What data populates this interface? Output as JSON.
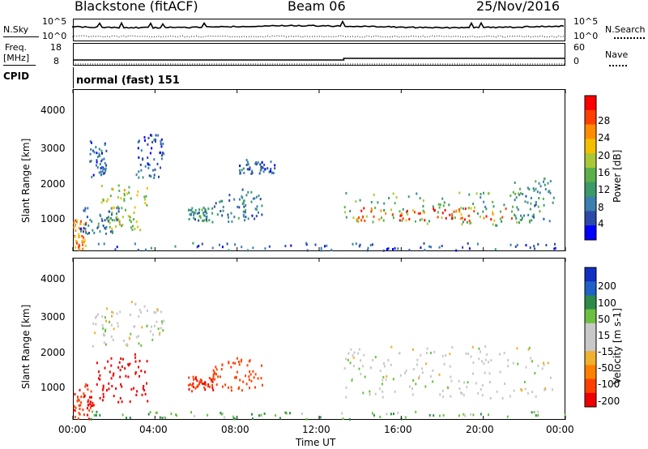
{
  "header": {
    "station": "Blackstone (fitACF)",
    "beam": "Beam 06",
    "date": "25/Nov/2016"
  },
  "noise_panel": {
    "left_label": "N.Sky",
    "left_ticks": [
      "10^5",
      "10^0"
    ],
    "right_label": "N.Search",
    "right_ticks": [
      "10^5",
      "10^0"
    ]
  },
  "freq_panel": {
    "left_label_1": "Freq.",
    "left_label_2": "[MHz]",
    "left_ticks": [
      "18",
      "8"
    ],
    "right_label": "Nave",
    "right_ticks": [
      "60",
      "0"
    ]
  },
  "cpid": {
    "label": "CPID",
    "value": "normal (fast) 151"
  },
  "colors": {
    "power_scale": [
      "#0000ff",
      "#2b4aa8",
      "#3a7fb0",
      "#3a9a6a",
      "#5ab04a",
      "#a8c838",
      "#f2c000",
      "#ff8c00",
      "#ff4000",
      "#ff0000"
    ],
    "velocity_scale": [
      "#1030c0",
      "#2060c8",
      "#2f8a4a",
      "#6cc040",
      "#c8c8c8",
      "#c8c8c8",
      "#f0b030",
      "#ff8000",
      "#ff4000",
      "#ee0000"
    ]
  },
  "chart_data": [
    {
      "type": "heatmap",
      "name": "power",
      "ylabel": "Slant Range [km]",
      "xlabel": "",
      "y_ticks": [
        "1000",
        "2000",
        "3000",
        "4000"
      ],
      "y_range": [
        200,
        4550
      ],
      "x_range_hours": [
        0,
        24
      ],
      "colorbar_label": "Power [dB]",
      "colorbar_ticks": [
        "4",
        "8",
        "12",
        "16",
        "20",
        "24",
        "28"
      ],
      "colorbar_range": [
        0,
        32
      ],
      "features": [
        {
          "t_start": 0.0,
          "t_end": 0.6,
          "range_low": 200,
          "range_high": 1100,
          "level": 24
        },
        {
          "t_start": 0.2,
          "t_end": 2.2,
          "range_low": 700,
          "range_high": 1400,
          "level": 8
        },
        {
          "t_start": 1.2,
          "t_end": 3.6,
          "range_low": 800,
          "range_high": 2000,
          "level": 18
        },
        {
          "t_start": 0.8,
          "t_end": 1.6,
          "range_low": 2200,
          "range_high": 3200,
          "level": 6
        },
        {
          "t_start": 3.0,
          "t_end": 4.4,
          "range_low": 2200,
          "range_high": 3400,
          "level": 5
        },
        {
          "t_start": 5.6,
          "t_end": 6.8,
          "range_low": 1000,
          "range_high": 1400,
          "level": 10
        },
        {
          "t_start": 6.8,
          "t_end": 9.2,
          "range_low": 1000,
          "range_high": 1900,
          "level": 8
        },
        {
          "t_start": 8.0,
          "t_end": 9.8,
          "range_low": 2300,
          "range_high": 2700,
          "level": 6
        },
        {
          "t_start": 0.5,
          "t_end": 24.0,
          "range_low": 200,
          "range_high": 450,
          "level": 6
        },
        {
          "t_start": 13.2,
          "t_end": 21.8,
          "range_low": 900,
          "range_high": 1800,
          "level": 14
        },
        {
          "t_start": 13.6,
          "t_end": 21.6,
          "range_low": 1050,
          "range_high": 1400,
          "level": 26
        },
        {
          "t_start": 21.4,
          "t_end": 23.4,
          "range_low": 1000,
          "range_high": 2200,
          "level": 10
        }
      ]
    },
    {
      "type": "heatmap",
      "name": "velocity",
      "ylabel": "Slant Range [km]",
      "xlabel": "Time UT",
      "y_ticks": [
        "1000",
        "2000",
        "3000",
        "4000"
      ],
      "y_range": [
        200,
        4550
      ],
      "x_range_hours": [
        0,
        24
      ],
      "x_ticks": [
        "00:00",
        "04:00",
        "08:00",
        "12:00",
        "16:00",
        "20:00",
        "00:00"
      ],
      "colorbar_label": "Velocity [m s-1]",
      "colorbar_ticks": [
        "200",
        "100",
        "50",
        "15",
        "-15",
        "-50",
        "-100",
        "-200"
      ],
      "features": [
        {
          "t_start": 0.0,
          "t_end": 1.0,
          "range_low": 200,
          "range_high": 1200,
          "velocity": -150
        },
        {
          "t_start": 1.0,
          "t_end": 3.6,
          "range_low": 700,
          "range_high": 2000,
          "velocity": -200
        },
        {
          "t_start": 0.8,
          "t_end": 4.4,
          "range_low": 2200,
          "range_high": 3400,
          "velocity": 0
        },
        {
          "t_start": 5.6,
          "t_end": 6.8,
          "range_low": 1000,
          "range_high": 1400,
          "velocity": -150
        },
        {
          "t_start": 6.8,
          "t_end": 9.2,
          "range_low": 1000,
          "range_high": 1900,
          "velocity": -120
        },
        {
          "t_start": 0.5,
          "t_end": 24.0,
          "range_low": 200,
          "range_high": 450,
          "velocity": 30
        },
        {
          "t_start": 13.2,
          "t_end": 23.4,
          "range_low": 800,
          "range_high": 2200,
          "velocity": 0
        }
      ]
    }
  ]
}
